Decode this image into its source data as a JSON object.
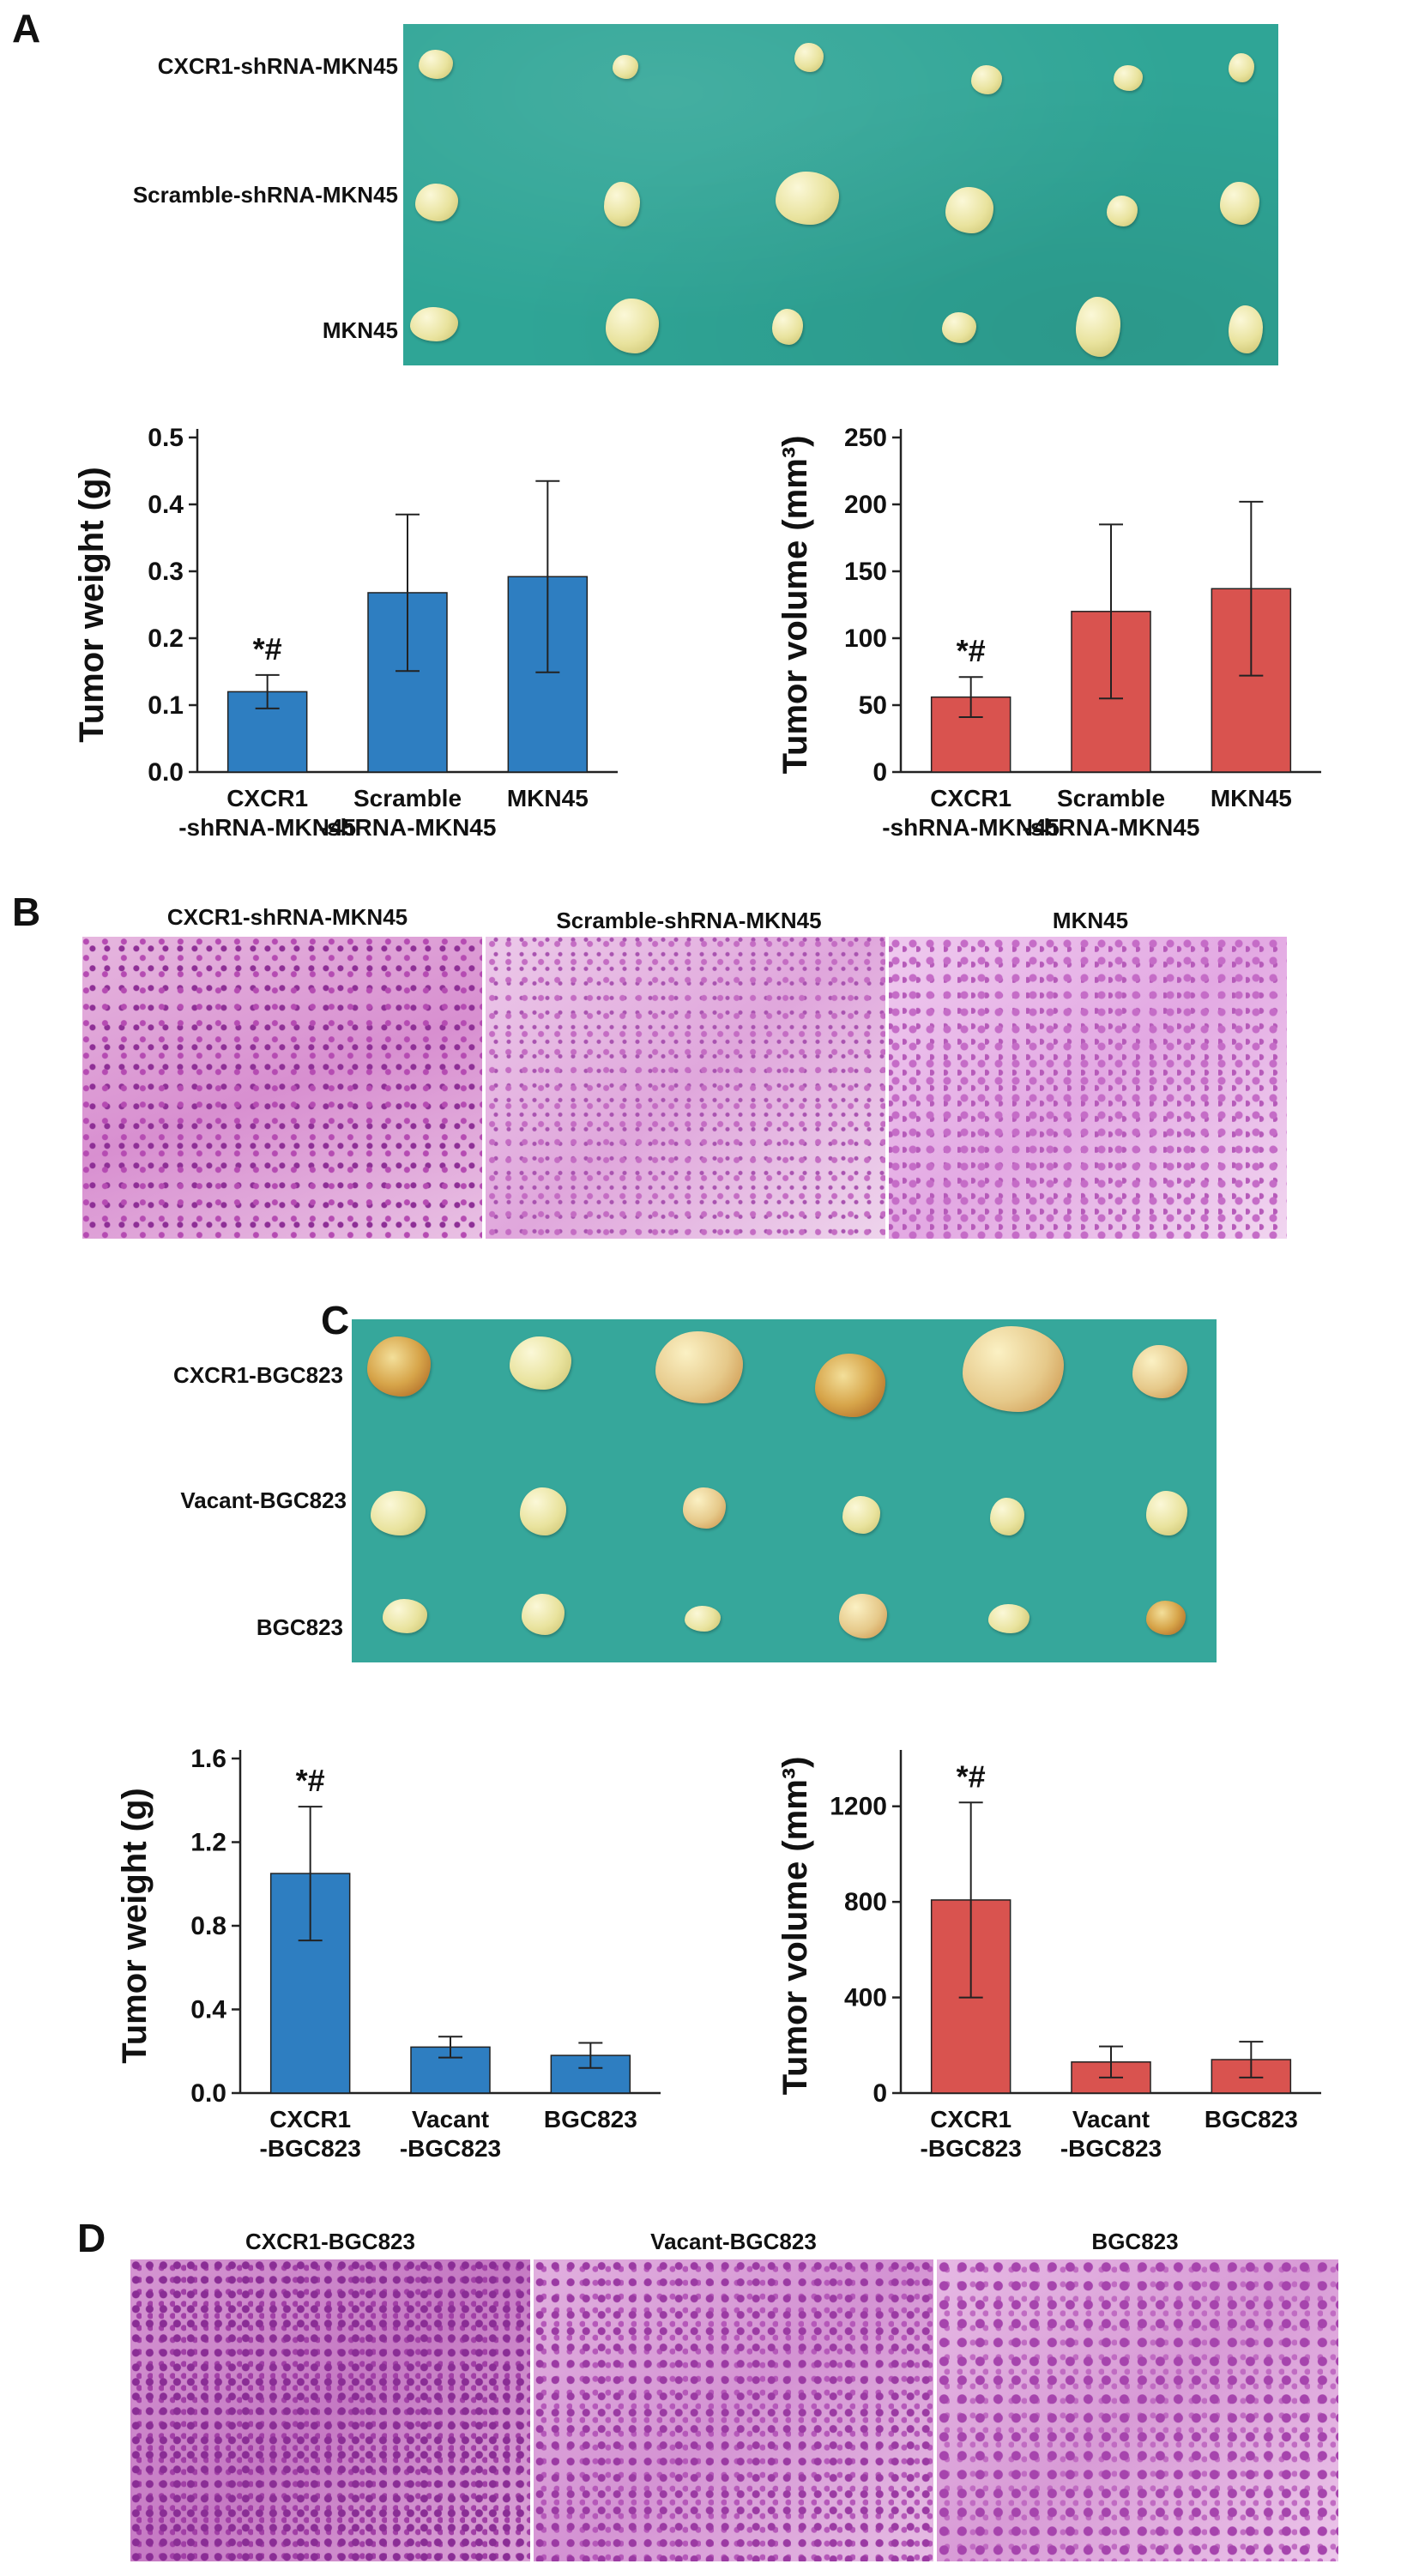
{
  "panels": {
    "a": {
      "letter": "A",
      "rows": [
        "CXCR1-shRNA-MKN45",
        "Scramble-shRNA-MKN45",
        "MKN45"
      ]
    },
    "b": {
      "letter": "B",
      "labels": [
        "CXCR1-shRNA-MKN45",
        "Scramble-shRNA-MKN45",
        "MKN45"
      ]
    },
    "c": {
      "letter": "C",
      "rows": [
        "CXCR1-BGC823",
        "Vacant-BGC823",
        "BGC823"
      ]
    },
    "d": {
      "letter": "D",
      "labels": [
        "CXCR1-BGC823",
        "Vacant-BGC823",
        "BGC823"
      ]
    }
  },
  "colors": {
    "blue": "#2e7ec1",
    "red": "#d9534f",
    "photo_bg": "#2fa596"
  },
  "chart_data": [
    {
      "id": "chart1",
      "type": "bar",
      "panel": "A",
      "categories": [
        "CXCR1\n-shRNA-MKN45",
        "Scramble\n-shRNA-MKN45",
        "MKN45"
      ],
      "values": [
        0.12,
        0.268,
        0.292
      ],
      "errors": [
        0.025,
        0.117,
        0.143
      ],
      "annotations": [
        "*#",
        "",
        ""
      ],
      "ylabel": "Tumor weight (g)",
      "ylim": [
        0,
        0.5
      ],
      "yticks": [
        "0.0",
        "0.1",
        "0.2",
        "0.3",
        "0.4",
        "0.5"
      ],
      "color": "#2e7ec1"
    },
    {
      "id": "chart2",
      "type": "bar",
      "panel": "A",
      "categories": [
        "CXCR1\n-shRNA-MKN45",
        "Scramble\n-shRNA-MKN45",
        "MKN45"
      ],
      "values": [
        56,
        120,
        137
      ],
      "errors": [
        15,
        65,
        65
      ],
      "annotations": [
        "*#",
        "",
        ""
      ],
      "ylabel": "Tumor volume (mm³)",
      "ylim": [
        0,
        250
      ],
      "yticks": [
        "0",
        "50",
        "100",
        "150",
        "200",
        "250"
      ],
      "color": "#d9534f"
    },
    {
      "id": "chart3",
      "type": "bar",
      "panel": "C",
      "categories": [
        "CXCR1\n-BGC823",
        "Vacant\n-BGC823",
        "BGC823"
      ],
      "values": [
        1.05,
        0.22,
        0.18
      ],
      "errors": [
        0.32,
        0.05,
        0.06
      ],
      "annotations": [
        "*#",
        "",
        ""
      ],
      "ylabel": "Tumor weight (g)",
      "ylim": [
        0,
        1.6
      ],
      "yticks": [
        "0.0",
        "0.4",
        "0.8",
        "1.2",
        "1.6"
      ],
      "color": "#2e7ec1"
    },
    {
      "id": "chart4",
      "type": "bar",
      "panel": "C",
      "categories": [
        "CXCR1\n-BGC823",
        "Vacant\n-BGC823",
        "BGC823"
      ],
      "values": [
        808,
        130,
        140
      ],
      "errors": [
        408,
        65,
        75
      ],
      "annotations": [
        "*#",
        "",
        ""
      ],
      "ylabel": "Tumor volume (mm³)",
      "ylim": [
        0,
        1400
      ],
      "yticks": [
        "0",
        "400",
        "800",
        "1200"
      ],
      "ytick_values": [
        0,
        400,
        800,
        1200
      ],
      "color": "#d9534f"
    }
  ]
}
